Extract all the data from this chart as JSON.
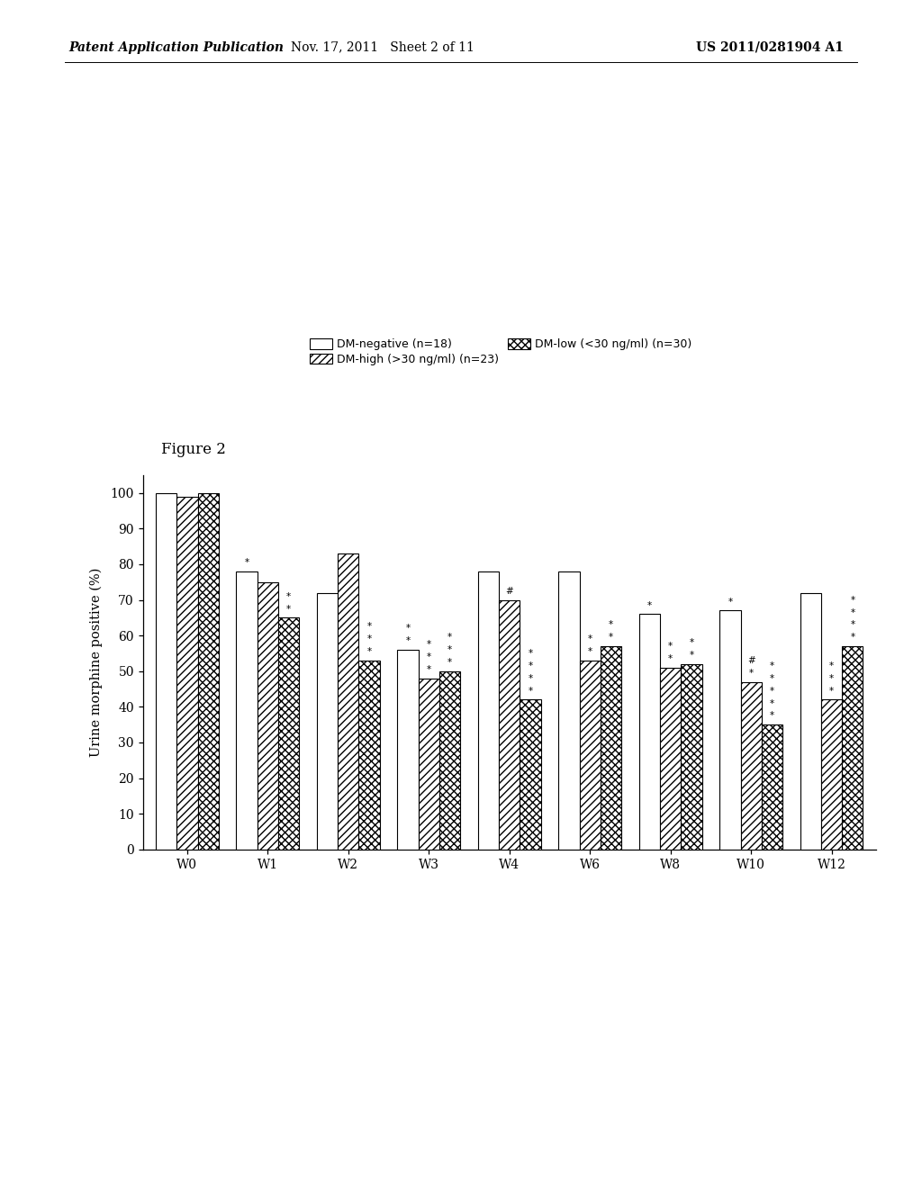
{
  "figure_label": "Figure 2",
  "ylabel": "Urine morphine positive (%)",
  "categories": [
    "W0",
    "W1",
    "W2",
    "W3",
    "W4",
    "W6",
    "W8",
    "W10",
    "W12"
  ],
  "dm_negative": [
    100,
    78,
    72,
    56,
    78,
    78,
    66,
    67,
    72
  ],
  "dm_high": [
    99,
    75,
    83,
    48,
    70,
    53,
    51,
    47,
    42
  ],
  "dm_low": [
    100,
    65,
    53,
    50,
    42,
    57,
    52,
    35,
    57
  ],
  "legend_neg": "DM-negative (n=18)",
  "legend_high": "DM-high (>30 ng/ml) (n=23)",
  "legend_low": "DM-low (<30 ng/ml) (n=30)",
  "background_color": "#ffffff",
  "bar_width": 0.26,
  "ylim": [
    0,
    105
  ],
  "yticks": [
    0,
    10,
    20,
    30,
    40,
    50,
    60,
    70,
    80,
    90,
    100
  ],
  "header_left": "Patent Application Publication",
  "header_mid": "Nov. 17, 2011   Sheet 2 of 11",
  "header_right": "US 2011/0281904 A1"
}
